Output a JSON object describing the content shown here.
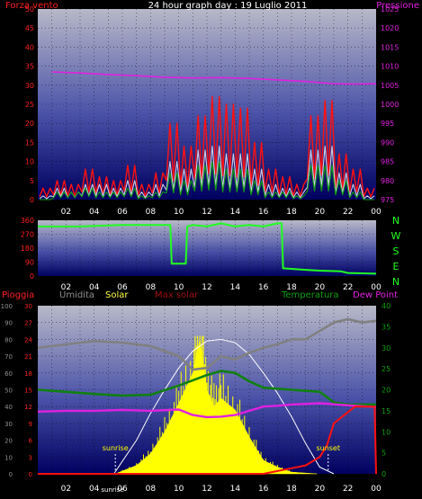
{
  "chart_data": [
    {
      "type": "line",
      "title": "24 hour graph day : 19 Luglio 2011",
      "left_axis_label": "Forza vento",
      "right_axis_label": "Pressione",
      "left_ticks": [
        0,
        5,
        10,
        15,
        20,
        25,
        30,
        35,
        40,
        45,
        50
      ],
      "right_ticks": [
        975,
        980,
        985,
        990,
        995,
        1000,
        1005,
        1010,
        1015,
        1020,
        1025
      ],
      "x_ticks": [
        "02",
        "04",
        "06",
        "08",
        "10",
        "12",
        "14",
        "16",
        "18",
        "20",
        "22",
        "00"
      ],
      "ylim_left": [
        0,
        50
      ],
      "ylim_right": [
        975,
        1025
      ],
      "series": [
        {
          "name": "Pressione",
          "color": "#e020e0",
          "axis": "right",
          "x": [
            1,
            3,
            5,
            7,
            9,
            11,
            13,
            15,
            17,
            19,
            21,
            22.5,
            24
          ],
          "values": [
            1008.5,
            1008.2,
            1007.8,
            1007.5,
            1007.1,
            1006.9,
            1007.0,
            1006.8,
            1006.4,
            1006.0,
            1005.4,
            1005.3,
            1005.4
          ]
        },
        {
          "color": "#ff1010",
          "axis": "left",
          "x": [
            1,
            2,
            3,
            4,
            5,
            6,
            7,
            8,
            9,
            10,
            11,
            12,
            13,
            14,
            15,
            16,
            17,
            18,
            19,
            20,
            21,
            22,
            23,
            24
          ],
          "values": [
            3,
            5,
            4,
            8,
            6,
            5,
            9,
            4,
            7,
            20,
            14,
            22,
            27,
            25,
            24,
            15,
            8,
            6,
            4,
            22,
            26,
            12,
            8,
            3
          ]
        },
        {
          "color": "#d0d0e8",
          "axis": "left",
          "x": [
            1,
            2,
            3,
            4,
            5,
            6,
            7,
            8,
            9,
            10,
            11,
            12,
            13,
            14,
            15,
            16,
            17,
            18,
            19,
            20,
            21,
            22,
            23,
            24
          ],
          "values": [
            1,
            3,
            2,
            4,
            4,
            3,
            5,
            2,
            4,
            10,
            8,
            13,
            14,
            12,
            12,
            8,
            4,
            3,
            2,
            13,
            14,
            7,
            4,
            1
          ]
        },
        {
          "color": "#10a010",
          "axis": "left",
          "x": [
            1,
            2,
            3,
            4,
            5,
            6,
            7,
            8,
            9,
            10,
            11,
            12,
            13,
            14,
            15,
            16,
            17,
            18,
            19,
            20,
            21,
            22,
            23,
            24
          ],
          "values": [
            0,
            2,
            2,
            3,
            2,
            2,
            3,
            1,
            2,
            7,
            5,
            9,
            10,
            8,
            8,
            5,
            2,
            2,
            1,
            9,
            9,
            5,
            2,
            0
          ]
        }
      ]
    },
    {
      "type": "line",
      "left_ticks": [
        0,
        90,
        180,
        270,
        360
      ],
      "right_labels": [
        "N",
        "W",
        "S",
        "E",
        "N"
      ],
      "x_ticks": [
        "02",
        "04",
        "06",
        "08",
        "10",
        "12",
        "14",
        "16",
        "18",
        "20",
        "22",
        "00"
      ],
      "ylim": [
        0,
        360
      ],
      "series": [
        {
          "color": "#20ff20",
          "x": [
            0,
            3,
            6,
            8,
            9.4,
            9.5,
            10.5,
            10.6,
            11,
            12,
            13,
            14,
            15,
            16,
            17,
            17.3,
            17.4,
            19,
            20,
            21.5,
            22,
            24
          ],
          "values": [
            320,
            320,
            330,
            330,
            330,
            80,
            80,
            320,
            330,
            320,
            340,
            320,
            330,
            320,
            340,
            340,
            50,
            40,
            35,
            30,
            20,
            15
          ]
        }
      ]
    },
    {
      "type": "area",
      "legend": [
        "Pioggia",
        "Umidita",
        "Solar",
        "Max solar",
        "Temperatura",
        "Dew Point"
      ],
      "humidity_ticks": [
        0,
        10,
        20,
        30,
        40,
        50,
        60,
        70,
        80,
        90,
        100
      ],
      "rain_ticks": [
        0,
        3,
        6,
        9,
        12,
        15,
        18,
        21,
        24,
        27,
        30
      ],
      "temperature_ticks": [
        0,
        5,
        10,
        15,
        20,
        25,
        30,
        35,
        40
      ],
      "x_ticks": [
        "02",
        "04",
        "06",
        "08",
        "10",
        "12",
        "14",
        "16",
        "18",
        "20",
        "22",
        "00"
      ],
      "annotations": [
        "sunrise",
        "sunset",
        "sunrise"
      ],
      "series": [
        {
          "name": "Umidita",
          "color": "#808080",
          "axis": "humidity",
          "x": [
            0,
            2,
            4,
            6,
            8,
            10,
            11,
            12,
            13,
            14,
            15,
            16,
            17,
            18,
            19,
            20,
            21,
            22,
            23,
            24
          ],
          "values": [
            75,
            77,
            79,
            78,
            76,
            70,
            62,
            63,
            70,
            68,
            72,
            75,
            77,
            80,
            80,
            85,
            90,
            92,
            90,
            91
          ]
        },
        {
          "name": "Temperatura",
          "color": "#108010",
          "axis": "temperature",
          "x": [
            0,
            2,
            4,
            6,
            8,
            10,
            12,
            13,
            14,
            15,
            16,
            18,
            20,
            21,
            22,
            24
          ],
          "values": [
            20,
            19.5,
            19,
            18.6,
            18.8,
            21,
            23.5,
            24.5,
            24,
            22,
            20.5,
            20,
            19.5,
            17,
            16.5,
            16.5
          ]
        },
        {
          "name": "Dew Point",
          "color": "#e020e0",
          "axis": "temperature",
          "x": [
            0,
            2,
            4,
            6,
            8,
            10,
            11,
            12,
            13,
            14,
            15,
            16,
            17,
            18,
            20,
            22,
            24
          ],
          "values": [
            14.8,
            15,
            15,
            15.2,
            15,
            15.3,
            14,
            13.5,
            13.6,
            14,
            15,
            16,
            16.2,
            16.5,
            16.8,
            16.3,
            15.9
          ]
        },
        {
          "name": "Solar",
          "color": "#ffff00",
          "axis": "humidity",
          "x": [
            5.5,
            7,
            8,
            9,
            10,
            11,
            11.5,
            12,
            12.5,
            13,
            14,
            15,
            16,
            17,
            18,
            19.8
          ],
          "values": [
            0,
            5,
            12,
            25,
            42,
            60,
            80,
            50,
            40,
            45,
            38,
            22,
            8,
            4,
            1,
            0
          ]
        },
        {
          "name": "Max solar",
          "color": "#ffffff",
          "axis": "humidity",
          "x": [
            5.4,
            7,
            8,
            9,
            10,
            11,
            12,
            13,
            14,
            15,
            16,
            17,
            18,
            19,
            20,
            21
          ],
          "values": [
            0,
            20,
            36,
            50,
            63,
            73,
            79,
            80,
            78,
            71,
            60,
            48,
            34,
            18,
            4,
            0
          ]
        },
        {
          "name": "Pioggia",
          "color": "#ff1010",
          "axis": "rain",
          "x": [
            0,
            16,
            17,
            18,
            19,
            20,
            20.5,
            21,
            22.5,
            23.9,
            24
          ],
          "values": [
            0,
            0,
            0.5,
            1,
            1.5,
            3,
            5,
            9,
            12,
            12,
            0
          ]
        }
      ]
    }
  ]
}
